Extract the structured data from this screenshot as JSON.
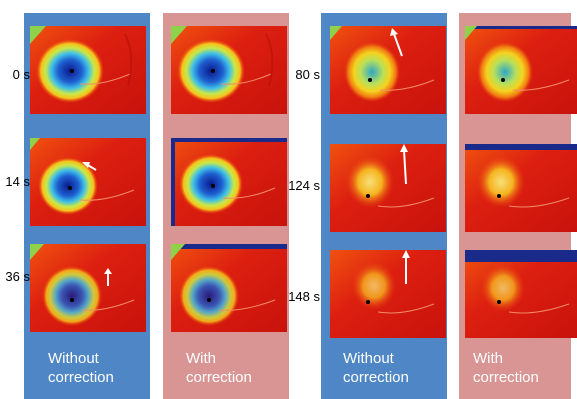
{
  "time_labels_left": [
    "0 s",
    "14 s",
    "36 s"
  ],
  "time_labels_right": [
    "80 s",
    "124 s",
    "148 s"
  ],
  "captions": {
    "left_without": [
      "Without",
      "correction"
    ],
    "left_with": [
      "With",
      "correction"
    ],
    "right_without": [
      "Without",
      "correction"
    ],
    "right_with": [
      "With",
      "correction"
    ]
  },
  "colors": {
    "without_panel": "#4e86c6",
    "with_panel": "#d99594",
    "heat_background": "#d8180e",
    "caption_text": "#ffffff",
    "motion_arrow": "#ffffff"
  }
}
